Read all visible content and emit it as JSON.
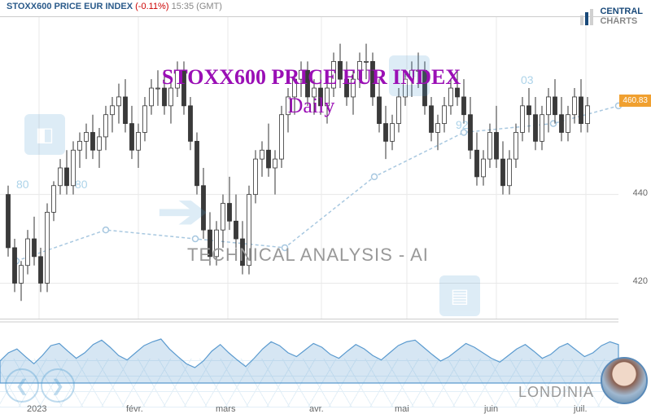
{
  "header": {
    "symbol": "STOXX600 PRICE EUR INDEX",
    "change": "(-0.11%)",
    "time": "15:35",
    "tz": "(GMT)"
  },
  "logo": {
    "line1": "CENTRAL",
    "line2": "CHARTS"
  },
  "overlay": {
    "title": "STOXX600 PRICE EUR INDEX",
    "subtitle": "Daily",
    "tech": "TECHNICAL  ANALYSIS - AI",
    "brand": "LONDINIA"
  },
  "watermark_labels": {
    "a": "80",
    "b": "80",
    "c": "92",
    "d": "03"
  },
  "chart": {
    "type": "candlestick",
    "ylim": [
      412,
      480
    ],
    "yticks": [
      420,
      440
    ],
    "price_tag": 460.83,
    "xlabels": [
      "2023",
      "févr.",
      "mars",
      "avr.",
      "mai",
      "juin",
      "juil."
    ],
    "xpositions": [
      48,
      170,
      280,
      395,
      500,
      610,
      720
    ],
    "grid_color": "#e8e8e8",
    "axis_color": "#bbb",
    "candle_up": "#ffffff",
    "candle_dn": "#3a3a3a",
    "wick": "#333",
    "support_line_color": "#a8c8e0",
    "support_points": [
      [
        20,
        425
      ],
      [
        130,
        432
      ],
      [
        240,
        430
      ],
      [
        350,
        428
      ],
      [
        460,
        444
      ],
      [
        570,
        454
      ],
      [
        680,
        456
      ],
      [
        760,
        460
      ]
    ],
    "candles": [
      [
        10,
        440,
        442,
        426,
        428
      ],
      [
        18,
        428,
        430,
        418,
        420
      ],
      [
        26,
        420,
        425,
        416,
        424
      ],
      [
        34,
        424,
        432,
        422,
        430
      ],
      [
        42,
        430,
        435,
        424,
        426
      ],
      [
        50,
        426,
        428,
        418,
        420
      ],
      [
        58,
        420,
        438,
        418,
        436
      ],
      [
        66,
        436,
        443,
        434,
        442
      ],
      [
        74,
        442,
        448,
        440,
        446
      ],
      [
        82,
        446,
        450,
        440,
        442
      ],
      [
        90,
        442,
        452,
        440,
        450
      ],
      [
        98,
        450,
        454,
        446,
        452
      ],
      [
        106,
        452,
        456,
        448,
        454
      ],
      [
        114,
        454,
        458,
        448,
        450
      ],
      [
        122,
        450,
        455,
        446,
        453
      ],
      [
        130,
        453,
        460,
        450,
        458
      ],
      [
        138,
        458,
        462,
        454,
        460
      ],
      [
        146,
        460,
        465,
        456,
        462
      ],
      [
        154,
        462,
        466,
        454,
        456
      ],
      [
        162,
        456,
        460,
        448,
        450
      ],
      [
        170,
        450,
        456,
        446,
        454
      ],
      [
        178,
        454,
        462,
        452,
        460
      ],
      [
        186,
        460,
        466,
        458,
        464
      ],
      [
        194,
        464,
        468,
        460,
        464
      ],
      [
        202,
        464,
        468,
        458,
        460
      ],
      [
        210,
        460,
        466,
        456,
        464
      ],
      [
        218,
        464,
        470,
        462,
        468
      ],
      [
        226,
        468,
        470,
        458,
        460
      ],
      [
        234,
        460,
        462,
        450,
        452
      ],
      [
        242,
        452,
        454,
        440,
        442
      ],
      [
        250,
        442,
        446,
        430,
        432
      ],
      [
        258,
        432,
        436,
        424,
        426
      ],
      [
        266,
        426,
        434,
        424,
        432
      ],
      [
        274,
        432,
        440,
        428,
        438
      ],
      [
        282,
        438,
        444,
        432,
        434
      ],
      [
        290,
        434,
        440,
        428,
        430
      ],
      [
        298,
        430,
        434,
        422,
        424
      ],
      [
        306,
        424,
        442,
        422,
        440
      ],
      [
        314,
        440,
        450,
        438,
        448
      ],
      [
        322,
        448,
        452,
        444,
        450
      ],
      [
        330,
        450,
        456,
        444,
        446
      ],
      [
        338,
        446,
        450,
        440,
        448
      ],
      [
        346,
        448,
        460,
        446,
        458
      ],
      [
        354,
        458,
        464,
        454,
        462
      ],
      [
        362,
        462,
        468,
        458,
        466
      ],
      [
        370,
        466,
        470,
        462,
        468
      ],
      [
        378,
        468,
        470,
        460,
        462
      ],
      [
        386,
        462,
        466,
        458,
        464
      ],
      [
        394,
        464,
        468,
        458,
        460
      ],
      [
        402,
        460,
        466,
        456,
        464
      ],
      [
        410,
        464,
        472,
        462,
        470
      ],
      [
        418,
        470,
        474,
        464,
        466
      ],
      [
        426,
        466,
        470,
        460,
        462
      ],
      [
        434,
        462,
        468,
        458,
        466
      ],
      [
        442,
        466,
        472,
        464,
        470
      ],
      [
        450,
        470,
        474,
        466,
        470
      ],
      [
        458,
        470,
        472,
        460,
        462
      ],
      [
        466,
        462,
        466,
        454,
        456
      ],
      [
        474,
        456,
        460,
        448,
        452
      ],
      [
        482,
        452,
        458,
        450,
        456
      ],
      [
        490,
        456,
        464,
        454,
        462
      ],
      [
        498,
        462,
        468,
        460,
        466
      ],
      [
        506,
        466,
        470,
        462,
        468
      ],
      [
        514,
        468,
        472,
        464,
        468
      ],
      [
        522,
        468,
        470,
        458,
        460
      ],
      [
        530,
        460,
        462,
        452,
        454
      ],
      [
        538,
        454,
        458,
        450,
        456
      ],
      [
        546,
        456,
        462,
        454,
        460
      ],
      [
        554,
        460,
        466,
        458,
        464
      ],
      [
        562,
        464,
        468,
        460,
        462
      ],
      [
        570,
        462,
        466,
        456,
        458
      ],
      [
        578,
        458,
        462,
        448,
        450
      ],
      [
        586,
        450,
        454,
        442,
        444
      ],
      [
        594,
        444,
        450,
        442,
        448
      ],
      [
        602,
        448,
        456,
        446,
        454
      ],
      [
        610,
        454,
        460,
        446,
        448
      ],
      [
        618,
        448,
        452,
        440,
        442
      ],
      [
        626,
        442,
        450,
        440,
        448
      ],
      [
        634,
        448,
        456,
        446,
        454
      ],
      [
        642,
        454,
        462,
        452,
        460
      ],
      [
        650,
        460,
        464,
        454,
        458
      ],
      [
        658,
        458,
        462,
        450,
        452
      ],
      [
        666,
        452,
        460,
        450,
        458
      ],
      [
        674,
        458,
        464,
        454,
        462
      ],
      [
        682,
        462,
        466,
        456,
        458
      ],
      [
        690,
        458,
        462,
        452,
        454
      ],
      [
        698,
        454,
        460,
        452,
        458
      ],
      [
        706,
        458,
        464,
        456,
        462
      ],
      [
        714,
        462,
        466,
        454,
        456
      ],
      [
        722,
        456,
        462,
        454,
        460
      ]
    ]
  },
  "indicator": {
    "type": "oscillator",
    "color": "#5a9acf",
    "fill": "rgba(90,154,207,0.25)",
    "ylim": [
      0,
      100
    ],
    "points": [
      40,
      55,
      62,
      48,
      35,
      50,
      68,
      72,
      58,
      45,
      55,
      70,
      78,
      65,
      50,
      42,
      55,
      68,
      75,
      80,
      62,
      48,
      35,
      28,
      40,
      58,
      70,
      55,
      42,
      30,
      45,
      62,
      75,
      68,
      55,
      48,
      60,
      72,
      65,
      52,
      45,
      58,
      70,
      62,
      50,
      42,
      55,
      68,
      75,
      78,
      65,
      52,
      40,
      48,
      60,
      72,
      65,
      55,
      45,
      38,
      50,
      62,
      70,
      58,
      45,
      52,
      65,
      72,
      60,
      48,
      55,
      68,
      75,
      70
    ]
  }
}
